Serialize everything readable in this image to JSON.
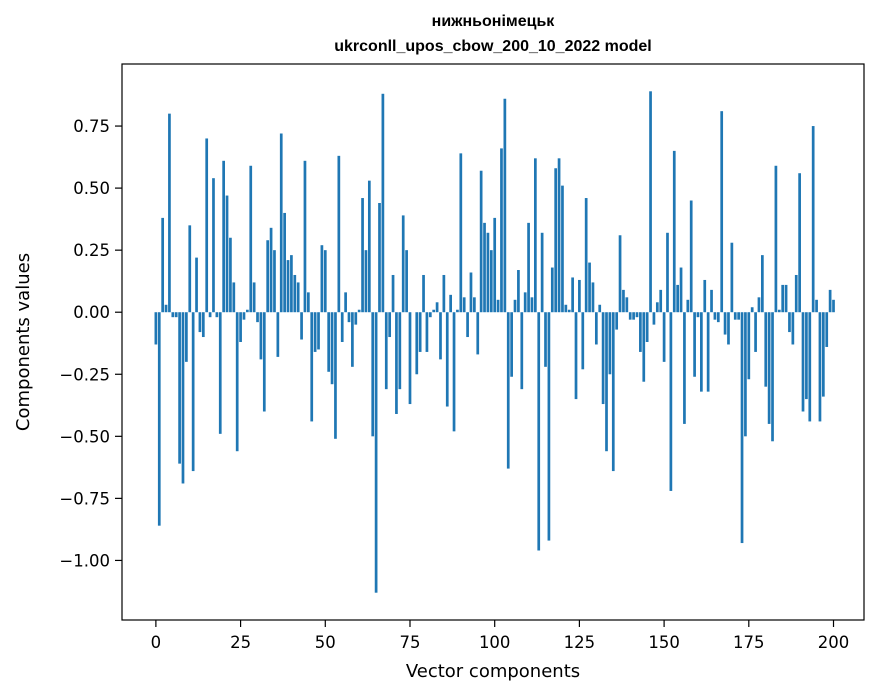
{
  "chart_data": {
    "type": "bar",
    "title_line1": "нижньонімецьк",
    "title_line2": "ukrconll_upos_cbow_200_10_2022 model",
    "xlabel": "Vector components",
    "ylabel": "Components values",
    "xlim": [
      -10,
      209
    ],
    "ylim": [
      -1.24,
      1.0
    ],
    "xticks": [
      0,
      25,
      50,
      75,
      100,
      125,
      150,
      175,
      200
    ],
    "xtick_labels": [
      "0",
      "25",
      "50",
      "75",
      "100",
      "125",
      "150",
      "175",
      "200"
    ],
    "yticks": [
      0.75,
      0.5,
      0.25,
      0.0,
      -0.25,
      -0.5,
      -0.75,
      -1.0
    ],
    "ytick_labels": [
      "0.75",
      "0.50",
      "0.25",
      "0.00",
      "−0.25",
      "−0.50",
      "−0.75",
      "−1.00"
    ],
    "series": [
      {
        "name": "components",
        "color": "#1f77b4",
        "values": [
          -0.13,
          -0.86,
          0.38,
          0.03,
          0.8,
          -0.02,
          -0.02,
          -0.61,
          -0.69,
          -0.2,
          0.35,
          -0.64,
          0.22,
          -0.08,
          -0.1,
          0.7,
          -0.02,
          0.54,
          -0.02,
          -0.49,
          0.61,
          0.47,
          0.3,
          0.12,
          -0.56,
          -0.12,
          -0.03,
          0.01,
          0.59,
          0.12,
          -0.04,
          -0.19,
          -0.4,
          0.29,
          0.34,
          0.25,
          -0.18,
          0.72,
          0.4,
          0.21,
          0.23,
          0.15,
          0.12,
          -0.11,
          0.61,
          0.08,
          -0.44,
          -0.16,
          -0.15,
          0.27,
          0.25,
          -0.24,
          -0.29,
          -0.51,
          0.63,
          -0.12,
          0.08,
          -0.04,
          -0.22,
          -0.05,
          0.01,
          0.46,
          0.25,
          0.53,
          -0.5,
          -1.13,
          0.44,
          0.88,
          -0.31,
          -0.1,
          0.15,
          -0.41,
          -0.31,
          0.39,
          0.25,
          -0.37,
          0.0,
          -0.25,
          -0.16,
          0.15,
          -0.16,
          -0.02,
          0.01,
          0.04,
          -0.19,
          0.15,
          -0.38,
          0.07,
          -0.48,
          0.01,
          0.64,
          0.06,
          -0.1,
          0.16,
          0.06,
          -0.17,
          0.57,
          0.36,
          0.32,
          0.25,
          0.38,
          0.05,
          0.66,
          0.86,
          -0.63,
          -0.26,
          0.05,
          0.17,
          -0.31,
          0.08,
          0.36,
          0.06,
          0.62,
          -0.96,
          0.32,
          -0.22,
          -0.92,
          0.18,
          0.58,
          0.62,
          0.51,
          0.03,
          0.01,
          0.14,
          -0.35,
          0.13,
          -0.23,
          0.46,
          0.2,
          0.12,
          -0.13,
          0.03,
          -0.37,
          -0.56,
          -0.25,
          -0.64,
          -0.07,
          0.31,
          0.09,
          0.06,
          -0.03,
          -0.03,
          -0.02,
          -0.16,
          -0.28,
          -0.12,
          0.89,
          -0.05,
          0.04,
          0.09,
          -0.2,
          0.32,
          -0.72,
          0.65,
          0.11,
          0.18,
          -0.45,
          0.05,
          0.45,
          -0.26,
          -0.02,
          -0.32,
          0.13,
          -0.32,
          0.09,
          -0.03,
          -0.04,
          0.81,
          -0.09,
          -0.13,
          0.28,
          -0.03,
          -0.03,
          -0.93,
          -0.5,
          -0.27,
          0.02,
          -0.16,
          0.06,
          0.23,
          -0.3,
          -0.45,
          -0.52,
          0.59,
          0.01,
          0.11,
          0.11,
          -0.08,
          -0.13,
          0.15,
          0.56,
          -0.4,
          -0.35,
          -0.44,
          0.75,
          0.05,
          -0.44,
          -0.34,
          -0.14,
          0.09,
          0.05
        ]
      }
    ]
  }
}
